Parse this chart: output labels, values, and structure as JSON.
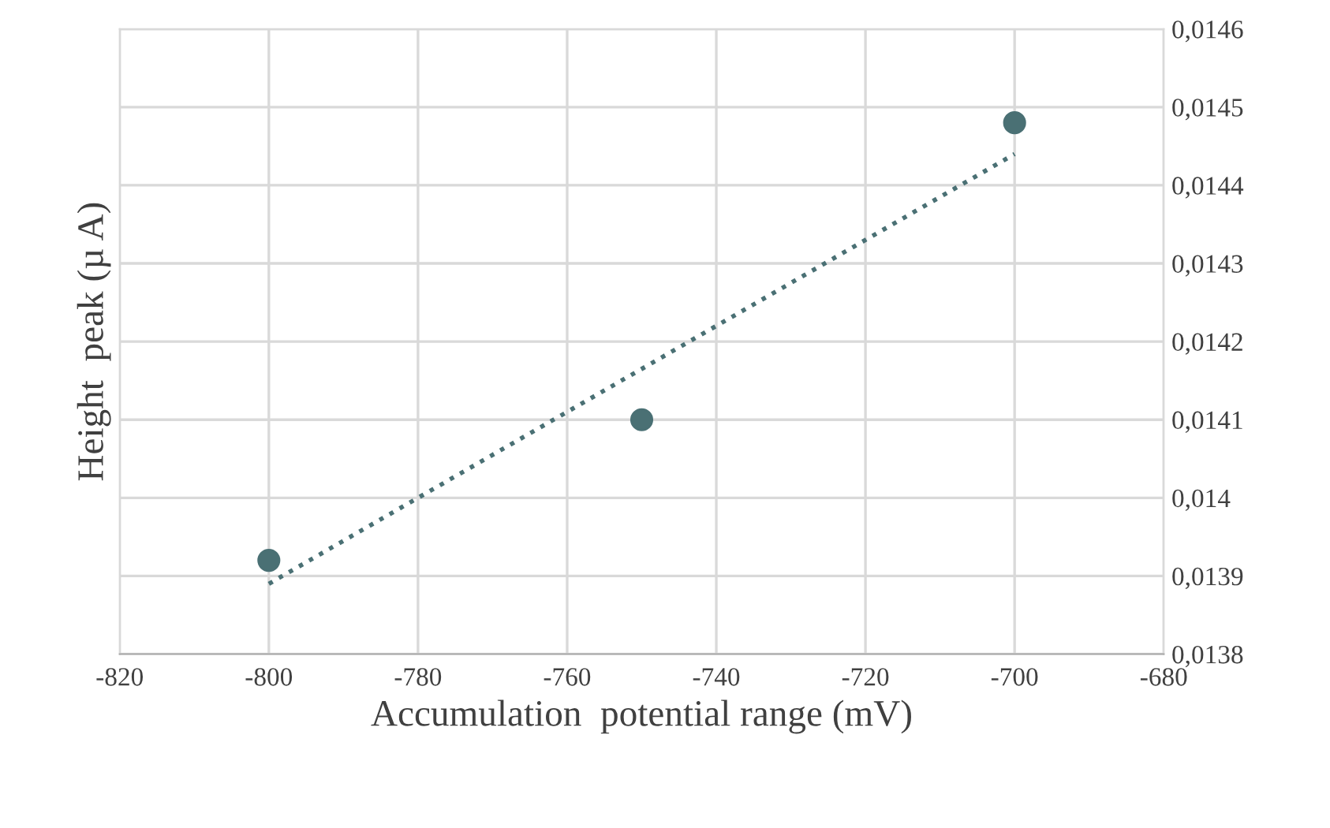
{
  "chart_data": {
    "type": "scatter",
    "xlabel": "Accumulation  potential range (mV)",
    "ylabel": "Height  peak (µ A)",
    "x": [
      -800,
      -750,
      -700
    ],
    "series": [
      {
        "color": "#4a7074",
        "values": [
          0.01392,
          0.0141,
          0.01448
        ],
        "marker": "circle"
      },
      {
        "type": "line",
        "color": "#4a7074",
        "x": [
          -800,
          -700
        ],
        "values": [
          0.01389,
          0.01444
        ],
        "line_style": "dotted"
      }
    ],
    "xlim": [
      -820,
      -680
    ],
    "xticks": [
      -820,
      -800,
      -780,
      -760,
      -740,
      -720,
      -700,
      -680
    ],
    "ylim": [
      0.0138,
      0.0146
    ],
    "yticks": [
      {
        "value": 0.0138,
        "label": "0,0138"
      },
      {
        "value": 0.0139,
        "label": "0,0139"
      },
      {
        "value": 0.014,
        "label": "0,014"
      },
      {
        "value": 0.0141,
        "label": "0,0141"
      },
      {
        "value": 0.0142,
        "label": "0,0142"
      },
      {
        "value": 0.0143,
        "label": "0,0143"
      },
      {
        "value": 0.0144,
        "label": "0,0144"
      },
      {
        "value": 0.0145,
        "label": "0,0145"
      },
      {
        "value": 0.0146,
        "label": "0,0146"
      }
    ],
    "grid": true,
    "legend": false
  }
}
